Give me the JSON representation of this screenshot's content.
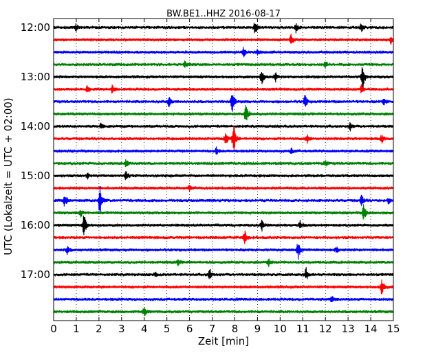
{
  "chart_data": {
    "type": "line",
    "title": "BW.BE1..HHZ 2016-08-17",
    "xlabel": "Zeit  [min]",
    "ylabel": "UTC (Lokalzeit = UTC + 02:00)",
    "xlim": [
      0,
      15
    ],
    "x_ticks": [
      "0",
      "1",
      "2",
      "3",
      "4",
      "5",
      "6",
      "7",
      "8",
      "9",
      "10",
      "11",
      "12",
      "13",
      "14",
      "15"
    ],
    "y_tick_labels": [
      "12:00",
      "13:00",
      "14:00",
      "15:00",
      "16:00",
      "17:00"
    ],
    "grid": "vertical dotted",
    "trace_interval_minutes": 15,
    "trace_colors": [
      "#000000",
      "#ff0000",
      "#0000ff",
      "#008000"
    ],
    "traces": [
      {
        "start": "12:00",
        "color": "#000000",
        "events": [
          [
            8.9,
            0.55
          ],
          [
            10.7,
            0.35
          ],
          [
            13.6,
            0.35
          ],
          [
            1.0,
            0.25
          ]
        ]
      },
      {
        "start": "12:15",
        "color": "#ff0000",
        "events": [
          [
            10.5,
            0.55
          ],
          [
            14.9,
            0.3
          ]
        ]
      },
      {
        "start": "12:30",
        "color": "#0000ff",
        "events": [
          [
            8.4,
            0.4
          ],
          [
            9.0,
            0.2
          ]
        ]
      },
      {
        "start": "12:45",
        "color": "#008000",
        "events": [
          [
            5.8,
            0.25
          ],
          [
            12.0,
            0.25
          ]
        ]
      },
      {
        "start": "13:00",
        "color": "#000000",
        "events": [
          [
            9.2,
            0.7
          ],
          [
            13.65,
            1.0
          ],
          [
            9.8,
            0.4
          ]
        ]
      },
      {
        "start": "13:15",
        "color": "#ff0000",
        "events": [
          [
            1.5,
            0.3
          ],
          [
            2.6,
            0.3
          ],
          [
            13.6,
            0.35
          ]
        ]
      },
      {
        "start": "13:30",
        "color": "#0000ff",
        "events": [
          [
            7.9,
            0.8
          ],
          [
            11.1,
            0.6
          ],
          [
            5.1,
            0.4
          ],
          [
            14.6,
            0.25
          ]
        ]
      },
      {
        "start": "13:45",
        "color": "#008000",
        "events": [
          [
            8.5,
            0.85
          ]
        ]
      },
      {
        "start": "14:00",
        "color": "#000000",
        "events": [
          [
            2.1,
            0.3
          ],
          [
            13.1,
            0.35
          ]
        ]
      },
      {
        "start": "14:15",
        "color": "#ff0000",
        "events": [
          [
            7.95,
            1.2
          ],
          [
            7.6,
            0.6
          ],
          [
            11.2,
            0.35
          ],
          [
            14.5,
            0.35
          ]
        ]
      },
      {
        "start": "14:30",
        "color": "#0000ff",
        "events": [
          [
            7.2,
            0.3
          ],
          [
            10.5,
            0.2
          ]
        ]
      },
      {
        "start": "14:45",
        "color": "#008000",
        "events": [
          [
            3.2,
            0.3
          ],
          [
            12.0,
            0.25
          ]
        ]
      },
      {
        "start": "15:00",
        "color": "#000000",
        "events": [
          [
            3.2,
            0.35
          ],
          [
            1.5,
            0.2
          ]
        ]
      },
      {
        "start": "15:15",
        "color": "#ff0000",
        "events": [
          [
            6.0,
            0.2
          ]
        ]
      },
      {
        "start": "15:30",
        "color": "#0000ff",
        "events": [
          [
            2.05,
            1.3
          ],
          [
            0.5,
            0.5
          ],
          [
            13.6,
            0.45
          ],
          [
            14.8,
            0.25
          ]
        ]
      },
      {
        "start": "15:45",
        "color": "#008000",
        "events": [
          [
            13.7,
            0.7
          ],
          [
            1.2,
            0.3
          ]
        ]
      },
      {
        "start": "16:00",
        "color": "#000000",
        "events": [
          [
            1.35,
            0.9
          ],
          [
            9.2,
            0.45
          ],
          [
            10.9,
            0.35
          ]
        ]
      },
      {
        "start": "16:15",
        "color": "#ff0000",
        "events": [
          [
            8.45,
            0.5
          ]
        ]
      },
      {
        "start": "16:30",
        "color": "#0000ff",
        "events": [
          [
            10.8,
            0.75
          ],
          [
            0.6,
            0.3
          ],
          [
            12.5,
            0.2
          ]
        ]
      },
      {
        "start": "16:45",
        "color": "#008000",
        "events": [
          [
            9.5,
            0.3
          ],
          [
            5.5,
            0.2
          ]
        ]
      },
      {
        "start": "17:00",
        "color": "#000000",
        "events": [
          [
            6.9,
            0.45
          ],
          [
            11.15,
            0.5
          ],
          [
            4.5,
            0.25
          ]
        ]
      },
      {
        "start": "17:15",
        "color": "#ff0000",
        "events": [
          [
            14.5,
            0.65
          ]
        ]
      },
      {
        "start": "17:30",
        "color": "#0000ff",
        "events": [
          [
            12.3,
            0.3
          ]
        ]
      },
      {
        "start": "17:45",
        "color": "#008000",
        "events": [
          [
            4.0,
            0.35
          ]
        ]
      }
    ]
  }
}
